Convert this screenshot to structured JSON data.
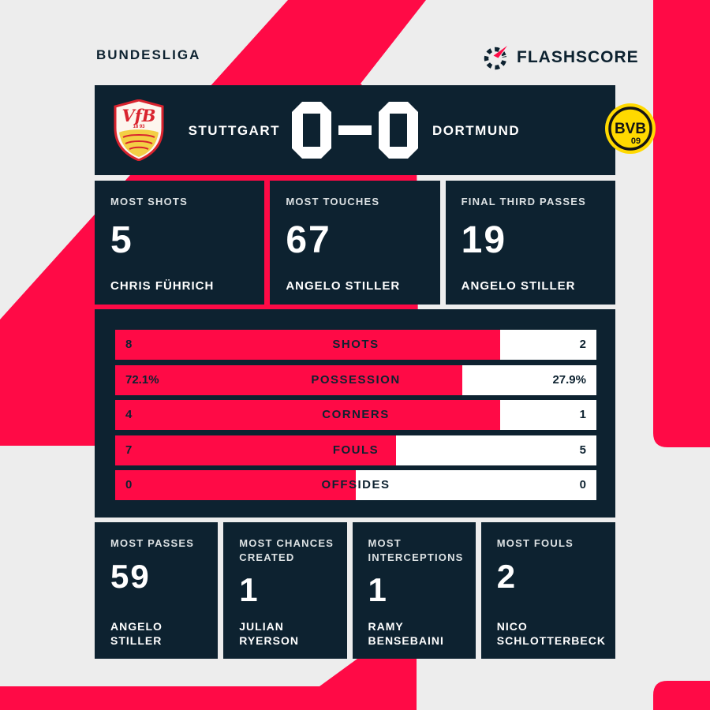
{
  "header": {
    "league": "BUNDESLIGA",
    "brand": "FLASHSCORE"
  },
  "colors": {
    "accent_pink": "#ff0a46",
    "panel_navy": "#0d2230",
    "background_gray": "#ededed",
    "bar_white": "#ffffff",
    "bvb_yellow": "#ffd900",
    "vfb_red": "#d9232e"
  },
  "scoreboard": {
    "home_team": "STUTTGART",
    "away_team": "DORTMUND",
    "home_score": "0",
    "away_score": "0",
    "score_text": "0-0",
    "home_crest": {
      "monogram": "VfB",
      "year": "18 93"
    },
    "away_crest": {
      "monogram": "BVB",
      "number": "09"
    }
  },
  "top_cards": [
    {
      "label": "MOST SHOTS",
      "value": "5",
      "player": "CHRIS FÜHRICH"
    },
    {
      "label": "MOST TOUCHES",
      "value": "67",
      "player": "ANGELO STILLER"
    },
    {
      "label": "FINAL THIRD PASSES",
      "value": "19",
      "player": "ANGELO STILLER"
    }
  ],
  "stats_bars": [
    {
      "home": "8",
      "label": "SHOTS",
      "away": "2",
      "home_width": "80%"
    },
    {
      "home": "72.1%",
      "label": "POSSESSION",
      "away": "27.9%",
      "home_width": "72.1%"
    },
    {
      "home": "4",
      "label": "CORNERS",
      "away": "1",
      "home_width": "80%"
    },
    {
      "home": "7",
      "label": "FOULS",
      "away": "5",
      "home_width": "58.3%"
    },
    {
      "home": "0",
      "label": "OFFSIDES",
      "away": "0",
      "home_width": "50%"
    }
  ],
  "bottom_cards": [
    {
      "label": "MOST PASSES",
      "value": "59",
      "player": "ANGELO STILLER"
    },
    {
      "label": "MOST CHANCES CREATED",
      "value": "1",
      "player": "JULIAN RYERSON"
    },
    {
      "label": "MOST INTERCEPTIONS",
      "value": "1",
      "player": "RAMY BENSEBAINI"
    },
    {
      "label": "MOST FOULS",
      "value": "2",
      "player": "NICO SCHLOTTERBECK"
    }
  ],
  "chart_data": {
    "type": "bar",
    "title": "Stuttgart 0-0 Dortmund — match statistics",
    "categories": [
      "SHOTS",
      "POSSESSION",
      "CORNERS",
      "FOULS",
      "OFFSIDES"
    ],
    "series": [
      {
        "name": "Stuttgart",
        "values": [
          8,
          72.1,
          4,
          7,
          0
        ]
      },
      {
        "name": "Dortmund",
        "values": [
          2,
          27.9,
          1,
          5,
          0
        ]
      }
    ],
    "value_format": "possession in %, others absolute counts",
    "legend_position": "none",
    "layout": "horizontal two-sided bars, home share filled pink from left, away share white"
  }
}
